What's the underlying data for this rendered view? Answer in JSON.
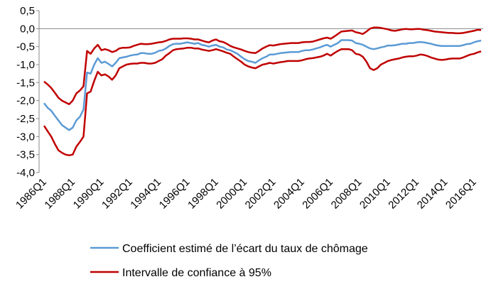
{
  "chart_data": {
    "type": "line",
    "categories": [
      "1986Q1",
      null,
      null,
      null,
      null,
      null,
      null,
      null,
      "1988Q1",
      null,
      null,
      null,
      null,
      null,
      null,
      null,
      "1990Q1",
      null,
      null,
      null,
      null,
      null,
      null,
      null,
      "1992Q1",
      null,
      null,
      null,
      null,
      null,
      null,
      null,
      "1994Q1",
      null,
      null,
      null,
      null,
      null,
      null,
      null,
      "1996Q1",
      null,
      null,
      null,
      null,
      null,
      null,
      null,
      "1998Q1",
      null,
      null,
      null,
      null,
      null,
      null,
      null,
      "2000Q1",
      null,
      null,
      null,
      null,
      null,
      null,
      null,
      "2002Q1",
      null,
      null,
      null,
      null,
      null,
      null,
      null,
      "2004Q1",
      null,
      null,
      null,
      null,
      null,
      null,
      null,
      "2006Q1",
      null,
      null,
      null,
      null,
      null,
      null,
      null,
      "2008Q1",
      null,
      null,
      null,
      null,
      null,
      null,
      null,
      "2010Q1",
      null,
      null,
      null,
      null,
      null,
      null,
      null,
      "2012Q1",
      null,
      null,
      null,
      null,
      null,
      null,
      null,
      "2014Q1",
      null,
      null,
      null,
      null,
      null,
      null,
      null,
      "2016Q1",
      null,
      null
    ],
    "series": [
      {
        "name": "Coefficient estimé de l’écart du taux de chômage",
        "color": "#5b9bd5",
        "values": [
          -2.07,
          -2.2,
          -2.28,
          -2.42,
          -2.55,
          -2.68,
          -2.75,
          -2.82,
          -2.75,
          -2.55,
          -2.45,
          -2.25,
          -1.22,
          -1.25,
          -1.0,
          -0.82,
          -0.95,
          -0.92,
          -0.98,
          -1.05,
          -0.95,
          -0.82,
          -0.8,
          -0.78,
          -0.75,
          -0.73,
          -0.72,
          -0.68,
          -0.68,
          -0.7,
          -0.7,
          -0.67,
          -0.62,
          -0.6,
          -0.55,
          -0.48,
          -0.43,
          -0.42,
          -0.42,
          -0.4,
          -0.38,
          -0.4,
          -0.42,
          -0.4,
          -0.45,
          -0.47,
          -0.5,
          -0.47,
          -0.45,
          -0.5,
          -0.52,
          -0.58,
          -0.6,
          -0.65,
          -0.7,
          -0.78,
          -0.85,
          -0.9,
          -0.92,
          -0.95,
          -0.88,
          -0.82,
          -0.78,
          -0.72,
          -0.72,
          -0.7,
          -0.68,
          -0.67,
          -0.66,
          -0.65,
          -0.65,
          -0.65,
          -0.62,
          -0.6,
          -0.6,
          -0.58,
          -0.55,
          -0.52,
          -0.48,
          -0.45,
          -0.5,
          -0.45,
          -0.4,
          -0.32,
          -0.32,
          -0.32,
          -0.33,
          -0.4,
          -0.42,
          -0.45,
          -0.5,
          -0.55,
          -0.57,
          -0.55,
          -0.52,
          -0.5,
          -0.47,
          -0.47,
          -0.46,
          -0.44,
          -0.42,
          -0.42,
          -0.4,
          -0.4,
          -0.38,
          -0.37,
          -0.38,
          -0.4,
          -0.42,
          -0.45,
          -0.47,
          -0.48,
          -0.48,
          -0.48,
          -0.48,
          -0.48,
          -0.48,
          -0.46,
          -0.43,
          -0.42,
          -0.38,
          -0.35,
          -0.33
        ]
      },
      {
        "name": "Intervalle de confiance à 95%",
        "color": "#c00000",
        "upper": [
          -1.47,
          -1.55,
          -1.65,
          -1.78,
          -1.92,
          -2.0,
          -2.05,
          -2.1,
          -2.0,
          -1.8,
          -1.72,
          -1.6,
          -0.62,
          -0.7,
          -0.55,
          -0.45,
          -0.6,
          -0.57,
          -0.6,
          -0.65,
          -0.62,
          -0.55,
          -0.53,
          -0.53,
          -0.52,
          -0.48,
          -0.45,
          -0.42,
          -0.43,
          -0.43,
          -0.42,
          -0.4,
          -0.38,
          -0.37,
          -0.34,
          -0.3,
          -0.28,
          -0.28,
          -0.28,
          -0.27,
          -0.27,
          -0.28,
          -0.3,
          -0.3,
          -0.33,
          -0.36,
          -0.38,
          -0.33,
          -0.3,
          -0.35,
          -0.37,
          -0.42,
          -0.48,
          -0.52,
          -0.55,
          -0.58,
          -0.62,
          -0.65,
          -0.67,
          -0.68,
          -0.62,
          -0.55,
          -0.5,
          -0.46,
          -0.47,
          -0.45,
          -0.43,
          -0.42,
          -0.41,
          -0.4,
          -0.4,
          -0.4,
          -0.38,
          -0.37,
          -0.37,
          -0.36,
          -0.33,
          -0.3,
          -0.27,
          -0.25,
          -0.28,
          -0.22,
          -0.15,
          -0.08,
          -0.07,
          -0.06,
          -0.05,
          -0.1,
          -0.12,
          -0.15,
          -0.08,
          0.0,
          0.03,
          0.03,
          0.02,
          0.0,
          -0.02,
          -0.05,
          -0.06,
          -0.04,
          -0.02,
          -0.01,
          -0.02,
          -0.02,
          -0.01,
          -0.01,
          -0.03,
          -0.04,
          -0.06,
          -0.08,
          -0.09,
          -0.1,
          -0.11,
          -0.12,
          -0.12,
          -0.13,
          -0.13,
          -0.12,
          -0.1,
          -0.08,
          -0.06,
          -0.03,
          -0.04
        ],
        "lower": [
          -2.7,
          -2.85,
          -3.0,
          -3.2,
          -3.38,
          -3.45,
          -3.5,
          -3.52,
          -3.5,
          -3.28,
          -3.15,
          -3.0,
          -1.8,
          -1.75,
          -1.45,
          -1.2,
          -1.3,
          -1.27,
          -1.33,
          -1.42,
          -1.3,
          -1.1,
          -1.05,
          -1.0,
          -0.98,
          -0.97,
          -0.97,
          -0.95,
          -0.95,
          -0.97,
          -0.97,
          -0.95,
          -0.9,
          -0.85,
          -0.75,
          -0.68,
          -0.6,
          -0.57,
          -0.56,
          -0.55,
          -0.53,
          -0.53,
          -0.55,
          -0.55,
          -0.58,
          -0.6,
          -0.62,
          -0.6,
          -0.57,
          -0.6,
          -0.63,
          -0.67,
          -0.7,
          -0.78,
          -0.85,
          -0.92,
          -1.0,
          -1.05,
          -1.08,
          -1.1,
          -1.05,
          -1.0,
          -0.98,
          -0.95,
          -0.97,
          -0.95,
          -0.93,
          -0.92,
          -0.9,
          -0.9,
          -0.9,
          -0.9,
          -0.88,
          -0.85,
          -0.83,
          -0.82,
          -0.8,
          -0.78,
          -0.75,
          -0.7,
          -0.75,
          -0.68,
          -0.62,
          -0.57,
          -0.57,
          -0.57,
          -0.6,
          -0.7,
          -0.72,
          -0.78,
          -0.92,
          -1.1,
          -1.15,
          -1.1,
          -1.0,
          -0.95,
          -0.9,
          -0.87,
          -0.85,
          -0.83,
          -0.8,
          -0.78,
          -0.77,
          -0.77,
          -0.75,
          -0.72,
          -0.73,
          -0.76,
          -0.8,
          -0.83,
          -0.86,
          -0.87,
          -0.86,
          -0.84,
          -0.83,
          -0.83,
          -0.83,
          -0.8,
          -0.76,
          -0.72,
          -0.7,
          -0.66,
          -0.63
        ]
      }
    ],
    "ylim": [
      -4.0,
      0.5
    ],
    "yticks": [
      {
        "value": 0.5,
        "label": "0,5"
      },
      {
        "value": 0.0,
        "label": "0,0"
      },
      {
        "value": -0.5,
        "label": "-0,5"
      },
      {
        "value": -1.0,
        "label": "-1,0"
      },
      {
        "value": -1.5,
        "label": "-1,5"
      },
      {
        "value": -2.0,
        "label": "-2,0"
      },
      {
        "value": -2.5,
        "label": "-2,5"
      },
      {
        "value": -3.0,
        "label": "-3,0"
      },
      {
        "value": -3.5,
        "label": "-3,5"
      },
      {
        "value": -4.0,
        "label": "-4,0"
      }
    ],
    "grid": false
  }
}
